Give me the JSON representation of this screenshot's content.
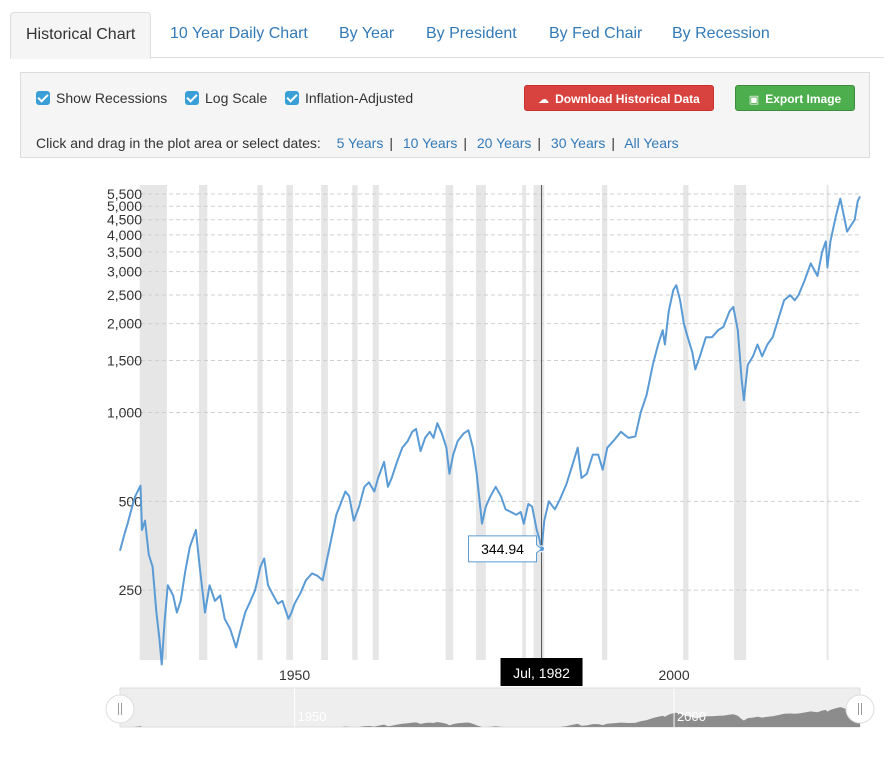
{
  "tabs": [
    {
      "label": "Historical Chart"
    },
    {
      "label": "10 Year Daily Chart"
    },
    {
      "label": "By Year"
    },
    {
      "label": "By President"
    },
    {
      "label": "By Fed Chair"
    },
    {
      "label": "By Recession"
    }
  ],
  "controls": {
    "show_recessions": "Show Recessions",
    "log_scale": "Log Scale",
    "inflation_adjusted": "Inflation-Adjusted",
    "download_label": "Download Historical Data",
    "export_label": "Export Image",
    "dates_prompt": "Click and drag in the plot area or select dates:",
    "ranges": [
      "5 Years",
      "10 Years",
      "20 Years",
      "30 Years",
      "All Years"
    ]
  },
  "colors": {
    "line": "#5b9bd5",
    "recession": "#e6e6e6",
    "navigator_fill": "#8c8c8c",
    "tooltip_bg": "#000000"
  },
  "chart_data": {
    "type": "line",
    "scale": "log",
    "xlim": [
      1927,
      2024.5
    ],
    "ylim": [
      145,
      5900
    ],
    "yticks": [
      250,
      500,
      1000,
      1500,
      2000,
      2500,
      3000,
      3500,
      4000,
      4500,
      5000,
      5500
    ],
    "ytick_labels": [
      "250",
      "500",
      "1,000",
      "1,500",
      "2,000",
      "2,500",
      "3,000",
      "3,500",
      "4,000",
      "4,500",
      "5,000",
      "5,500"
    ],
    "xticks": [
      1950,
      2000
    ],
    "xtick_labels": [
      "1950",
      "2000"
    ],
    "recessions": [
      [
        1929.6,
        1933.2
      ],
      [
        1937.4,
        1938.5
      ],
      [
        1945.1,
        1945.8
      ],
      [
        1948.9,
        1949.8
      ],
      [
        1953.5,
        1954.4
      ],
      [
        1957.6,
        1958.3
      ],
      [
        1960.3,
        1961.1
      ],
      [
        1969.9,
        1970.9
      ],
      [
        1973.9,
        1975.2
      ],
      [
        1980.0,
        1980.5
      ],
      [
        1981.5,
        1982.9
      ],
      [
        1990.5,
        1991.2
      ],
      [
        2001.2,
        2001.9
      ],
      [
        2007.9,
        2009.5
      ],
      [
        2020.1,
        2020.3
      ]
    ],
    "series": [
      {
        "values": [
          [
            1927.0,
            340
          ],
          [
            1927.5,
            380
          ],
          [
            1928.0,
            420
          ],
          [
            1928.5,
            470
          ],
          [
            1929.0,
            520
          ],
          [
            1929.7,
            565
          ],
          [
            1929.9,
            400
          ],
          [
            1930.3,
            430
          ],
          [
            1930.8,
            330
          ],
          [
            1931.3,
            300
          ],
          [
            1931.8,
            210
          ],
          [
            1932.2,
            170
          ],
          [
            1932.5,
            140
          ],
          [
            1932.9,
            200
          ],
          [
            1933.3,
            260
          ],
          [
            1934.0,
            240
          ],
          [
            1934.5,
            210
          ],
          [
            1935.0,
            230
          ],
          [
            1935.6,
            290
          ],
          [
            1936.2,
            350
          ],
          [
            1937.0,
            400
          ],
          [
            1937.5,
            300
          ],
          [
            1938.2,
            210
          ],
          [
            1938.8,
            260
          ],
          [
            1939.5,
            230
          ],
          [
            1940.2,
            240
          ],
          [
            1940.8,
            200
          ],
          [
            1941.5,
            185
          ],
          [
            1942.3,
            160
          ],
          [
            1942.8,
            180
          ],
          [
            1943.5,
            210
          ],
          [
            1944.2,
            230
          ],
          [
            1944.8,
            250
          ],
          [
            1945.5,
            300
          ],
          [
            1946.0,
            320
          ],
          [
            1946.5,
            260
          ],
          [
            1947.2,
            240
          ],
          [
            1947.8,
            225
          ],
          [
            1948.4,
            230
          ],
          [
            1949.2,
            200
          ],
          [
            1949.6,
            210
          ],
          [
            1950.0,
            225
          ],
          [
            1950.8,
            245
          ],
          [
            1951.5,
            270
          ],
          [
            1952.3,
            285
          ],
          [
            1953.0,
            280
          ],
          [
            1953.7,
            270
          ],
          [
            1954.3,
            320
          ],
          [
            1954.9,
            380
          ],
          [
            1955.5,
            450
          ],
          [
            1956.2,
            500
          ],
          [
            1956.7,
            540
          ],
          [
            1957.2,
            520
          ],
          [
            1957.8,
            430
          ],
          [
            1958.5,
            480
          ],
          [
            1959.2,
            560
          ],
          [
            1959.8,
            580
          ],
          [
            1960.5,
            540
          ],
          [
            1961.0,
            600
          ],
          [
            1961.8,
            680
          ],
          [
            1962.3,
            560
          ],
          [
            1962.8,
            600
          ],
          [
            1963.5,
            680
          ],
          [
            1964.2,
            760
          ],
          [
            1964.9,
            800
          ],
          [
            1965.5,
            860
          ],
          [
            1966.0,
            880
          ],
          [
            1966.6,
            740
          ],
          [
            1967.2,
            820
          ],
          [
            1967.8,
            860
          ],
          [
            1968.3,
            820
          ],
          [
            1968.8,
            920
          ],
          [
            1969.4,
            850
          ],
          [
            1970.0,
            760
          ],
          [
            1970.4,
            620
          ],
          [
            1970.9,
            720
          ],
          [
            1971.5,
            800
          ],
          [
            1972.3,
            850
          ],
          [
            1972.9,
            870
          ],
          [
            1973.5,
            760
          ],
          [
            1974.0,
            620
          ],
          [
            1974.7,
            420
          ],
          [
            1975.2,
            480
          ],
          [
            1975.8,
            520
          ],
          [
            1976.5,
            560
          ],
          [
            1977.2,
            520
          ],
          [
            1977.8,
            470
          ],
          [
            1978.5,
            460
          ],
          [
            1979.2,
            450
          ],
          [
            1979.8,
            460
          ],
          [
            1980.2,
            420
          ],
          [
            1980.8,
            490
          ],
          [
            1981.3,
            480
          ],
          [
            1981.9,
            400
          ],
          [
            1982.3,
            370
          ],
          [
            1982.54,
            345
          ],
          [
            1982.9,
            430
          ],
          [
            1983.5,
            500
          ],
          [
            1984.3,
            470
          ],
          [
            1985.0,
            510
          ],
          [
            1985.8,
            570
          ],
          [
            1986.5,
            650
          ],
          [
            1987.3,
            760
          ],
          [
            1987.8,
            600
          ],
          [
            1988.5,
            620
          ],
          [
            1989.3,
            720
          ],
          [
            1990.0,
            720
          ],
          [
            1990.6,
            640
          ],
          [
            1991.2,
            760
          ],
          [
            1992.0,
            800
          ],
          [
            1993.0,
            860
          ],
          [
            1994.0,
            820
          ],
          [
            1994.9,
            830
          ],
          [
            1995.6,
            1000
          ],
          [
            1996.4,
            1150
          ],
          [
            1997.2,
            1450
          ],
          [
            1997.9,
            1700
          ],
          [
            1998.5,
            1900
          ],
          [
            1998.8,
            1700
          ],
          [
            1999.3,
            2200
          ],
          [
            1999.9,
            2600
          ],
          [
            2000.3,
            2700
          ],
          [
            2000.8,
            2400
          ],
          [
            2001.3,
            2000
          ],
          [
            2001.8,
            1800
          ],
          [
            2002.4,
            1600
          ],
          [
            2002.8,
            1400
          ],
          [
            2003.4,
            1550
          ],
          [
            2004.2,
            1800
          ],
          [
            2005.0,
            1800
          ],
          [
            2005.8,
            1900
          ],
          [
            2006.5,
            1950
          ],
          [
            2007.3,
            2200
          ],
          [
            2007.8,
            2280
          ],
          [
            2008.4,
            1900
          ],
          [
            2008.9,
            1300
          ],
          [
            2009.2,
            1100
          ],
          [
            2009.7,
            1450
          ],
          [
            2010.4,
            1550
          ],
          [
            2011.0,
            1700
          ],
          [
            2011.6,
            1550
          ],
          [
            2012.3,
            1700
          ],
          [
            2013.0,
            1800
          ],
          [
            2013.8,
            2100
          ],
          [
            2014.5,
            2400
          ],
          [
            2015.3,
            2500
          ],
          [
            2015.9,
            2400
          ],
          [
            2016.4,
            2500
          ],
          [
            2017.2,
            2800
          ],
          [
            2018.0,
            3200
          ],
          [
            2018.9,
            2900
          ],
          [
            2019.5,
            3500
          ],
          [
            2020.0,
            3800
          ],
          [
            2020.2,
            3100
          ],
          [
            2020.6,
            3800
          ],
          [
            2021.3,
            4600
          ],
          [
            2021.9,
            5300
          ],
          [
            2022.4,
            4600
          ],
          [
            2022.8,
            4100
          ],
          [
            2023.3,
            4300
          ],
          [
            2023.8,
            4500
          ],
          [
            2024.2,
            5200
          ],
          [
            2024.5,
            5400
          ]
        ]
      }
    ],
    "tooltip": {
      "value": "344.94",
      "x": 1982.54,
      "date_label": "Jul, 1982"
    },
    "navigator": {
      "labels": [
        "1950",
        "2000"
      ]
    }
  }
}
